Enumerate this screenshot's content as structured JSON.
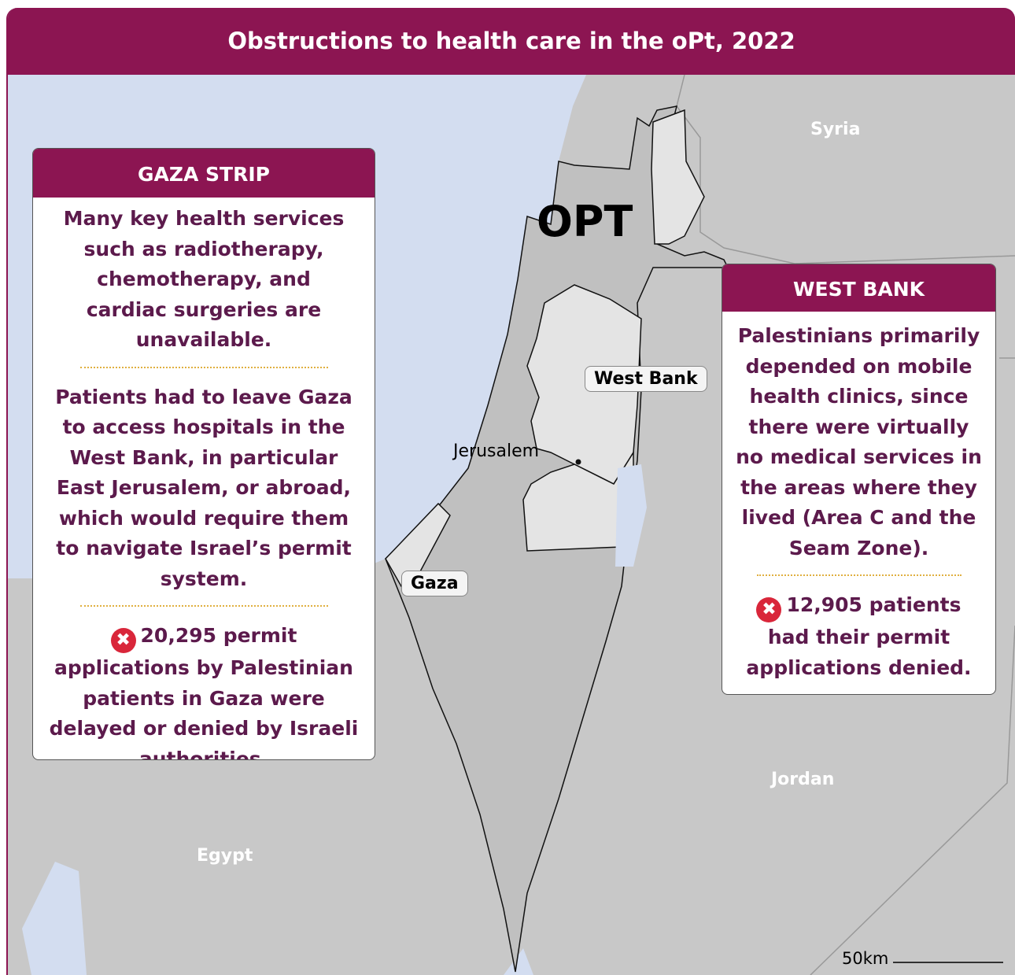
{
  "title": "Obstructions to health care in the oPt, 2022",
  "map_labels": {
    "syria": "Syria",
    "jordan": "Jordan",
    "egypt": "Egypt",
    "opt": "OPT",
    "west_bank": "West Bank",
    "gaza": "Gaza",
    "jerusalem": "Jerusalem",
    "scale": "50km"
  },
  "gaza_panel": {
    "heading": "GAZA STRIP",
    "paragraphs": [
      "Many key health services such as radiotherapy, chemotherapy, and cardiac surgeries are unavailable.",
      "Patients had to leave Gaza to access hospitals in the West Bank, in particular East Jerusalem, or abroad, which would require them to navigate Israel’s permit system."
    ],
    "stat": "20,295 permit applications by Palestinian patients in Gaza were delayed or denied by Israeli authorities."
  },
  "west_bank_panel": {
    "heading": "WEST BANK",
    "paragraphs": [
      "Palestinians primarily depended on mobile health clinics, since there were virtually no medical services in the areas where they lived (Area C and the Seam Zone)."
    ],
    "stat": "12,905 patients had their permit applications denied."
  }
}
